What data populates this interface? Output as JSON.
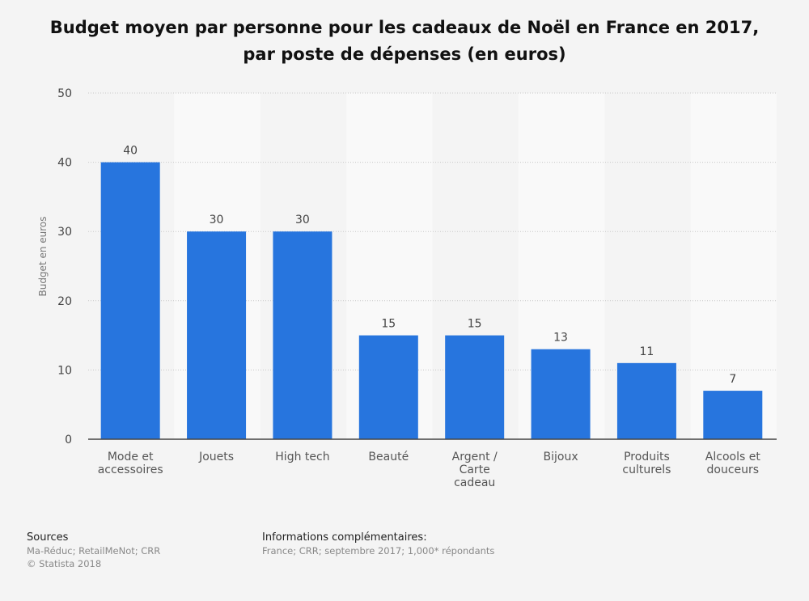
{
  "title": "Budget moyen par personne pour les cadeaux de Noël en France en 2017, par poste de dépenses (en euros)",
  "footer": {
    "sources_label": "Sources",
    "sources_text": "Ma-Réduc; RetailMeNot; CRR",
    "copyright": "© Statista 2018",
    "info_label": "Informations complémentaires:",
    "info_text": "France; CRR; septembre 2017; 1,000* répondants"
  },
  "colors": {
    "bar": "#2775de",
    "background": "#f4f4f4",
    "band": "#f9f9f9"
  },
  "chart_data": {
    "type": "bar",
    "title": "Budget moyen par personne pour les cadeaux de Noël en France en 2017, par poste de dépenses (en euros)",
    "categories": [
      [
        "Mode et",
        "accessoires"
      ],
      [
        "Jouets"
      ],
      [
        "High tech"
      ],
      [
        "Beauté"
      ],
      [
        "Argent /",
        "Carte",
        "cadeau"
      ],
      [
        "Bijoux"
      ],
      [
        "Produits",
        "culturels"
      ],
      [
        "Alcools et",
        "douceurs"
      ]
    ],
    "values": [
      40,
      30,
      30,
      15,
      15,
      13,
      11,
      7
    ],
    "data_labels": [
      "40",
      "30",
      "30",
      "15",
      "15",
      "13",
      "11",
      "7"
    ],
    "xlabel": "",
    "ylabel": "Budget en euros",
    "ylim": [
      0,
      50
    ],
    "yticks": [
      0,
      10,
      20,
      30,
      40,
      50
    ],
    "grid": true
  }
}
